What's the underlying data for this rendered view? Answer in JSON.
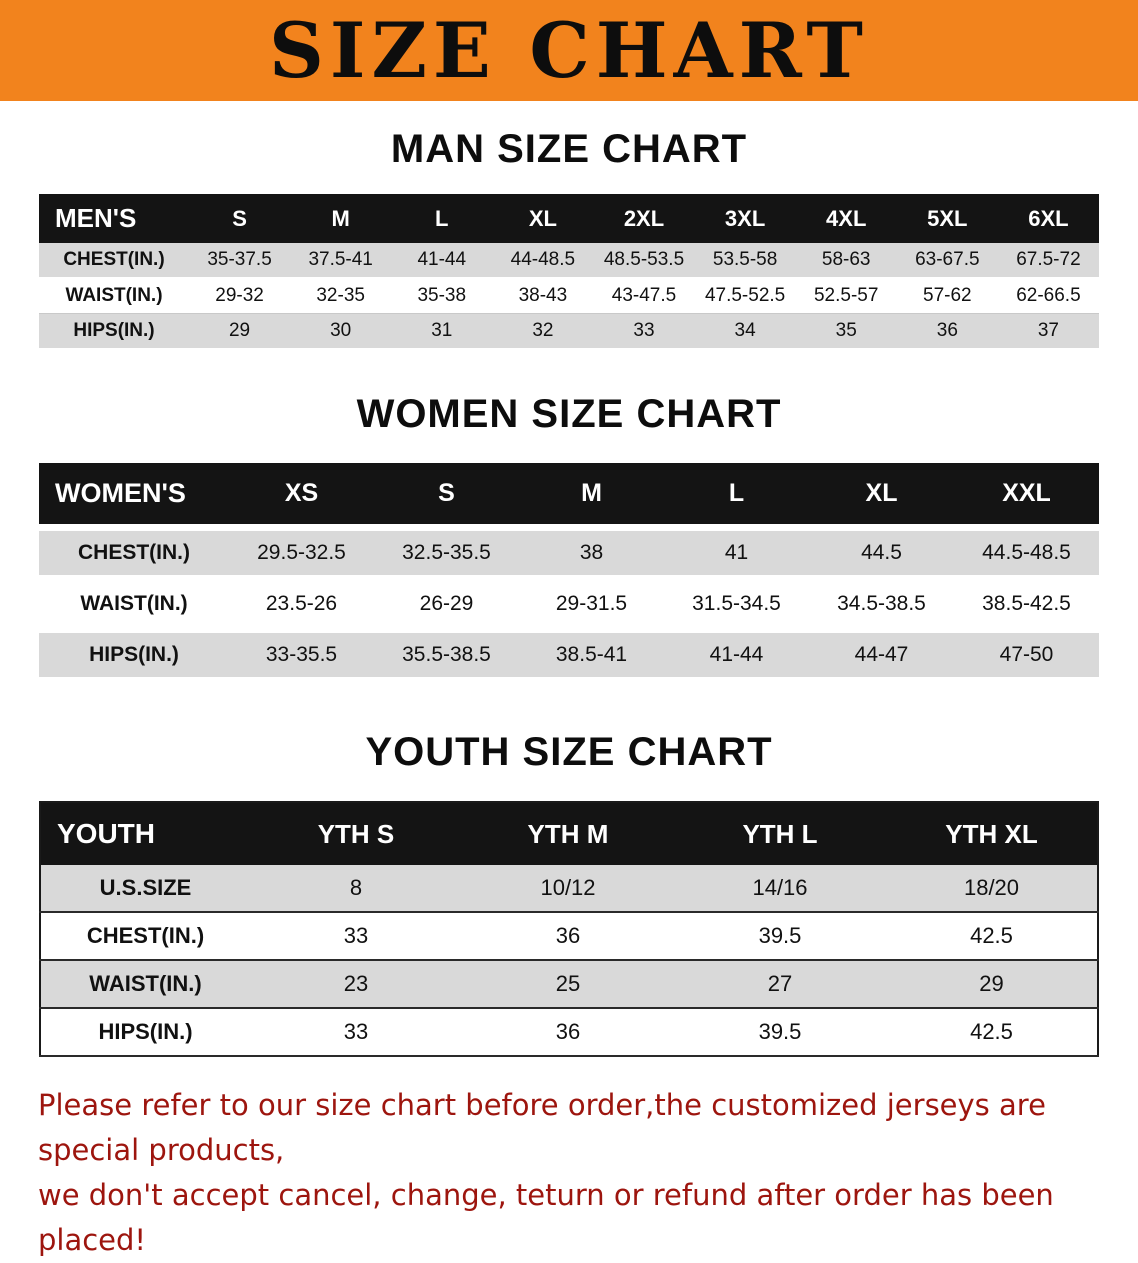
{
  "banner": {
    "title": "SIZE CHART"
  },
  "colors": {
    "banner_bg": "#f2831d",
    "table_header_bg": "#141414",
    "table_header_text": "#ffffff",
    "row_alt_bg": "#d9d9d9",
    "footer_text": "#9d150e"
  },
  "sections": {
    "men": {
      "heading": "MAN SIZE CHART",
      "table": {
        "header": [
          "MEN'S",
          "S",
          "M",
          "L",
          "XL",
          "2XL",
          "3XL",
          "4XL",
          "5XL",
          "6XL"
        ],
        "rows": [
          [
            "CHEST(IN.)",
            "35-37.5",
            "37.5-41",
            "41-44",
            "44-48.5",
            "48.5-53.5",
            "53.5-58",
            "58-63",
            "63-67.5",
            "67.5-72"
          ],
          [
            "WAIST(IN.)",
            "29-32",
            "32-35",
            "35-38",
            "38-43",
            "43-47.5",
            "47.5-52.5",
            "52.5-57",
            "57-62",
            "62-66.5"
          ],
          [
            "HIPS(IN.)",
            "29",
            "30",
            "31",
            "32",
            "33",
            "34",
            "35",
            "36",
            "37"
          ]
        ]
      }
    },
    "women": {
      "heading": "WOMEN SIZE CHART",
      "table": {
        "header": [
          "WOMEN'S",
          "XS",
          "S",
          "M",
          "L",
          "XL",
          "XXL"
        ],
        "rows": [
          [
            "CHEST(IN.)",
            "29.5-32.5",
            "32.5-35.5",
            "38",
            "41",
            "44.5",
            "44.5-48.5"
          ],
          [
            "WAIST(IN.)",
            "23.5-26",
            "26-29",
            "29-31.5",
            "31.5-34.5",
            "34.5-38.5",
            "38.5-42.5"
          ],
          [
            "HIPS(IN.)",
            "33-35.5",
            "35.5-38.5",
            "38.5-41",
            "41-44",
            "44-47",
            "47-50"
          ]
        ]
      }
    },
    "youth": {
      "heading": "YOUTH SIZE CHART",
      "table": {
        "header": [
          "YOUTH",
          "YTH S",
          "YTH M",
          "YTH L",
          "YTH XL"
        ],
        "rows": [
          [
            "U.S.SIZE",
            "8",
            "10/12",
            "14/16",
            "18/20"
          ],
          [
            "CHEST(IN.)",
            "33",
            "36",
            "39.5",
            "42.5"
          ],
          [
            "WAIST(IN.)",
            "23",
            "25",
            "27",
            "29"
          ],
          [
            "HIPS(IN.)",
            "33",
            "36",
            "39.5",
            "42.5"
          ]
        ]
      }
    }
  },
  "footer": {
    "line1": "Please refer to our size chart before order,the customized jerseys are special products,",
    "line2": "we don't accept cancel, change, teturn or refund after order has been placed!"
  }
}
